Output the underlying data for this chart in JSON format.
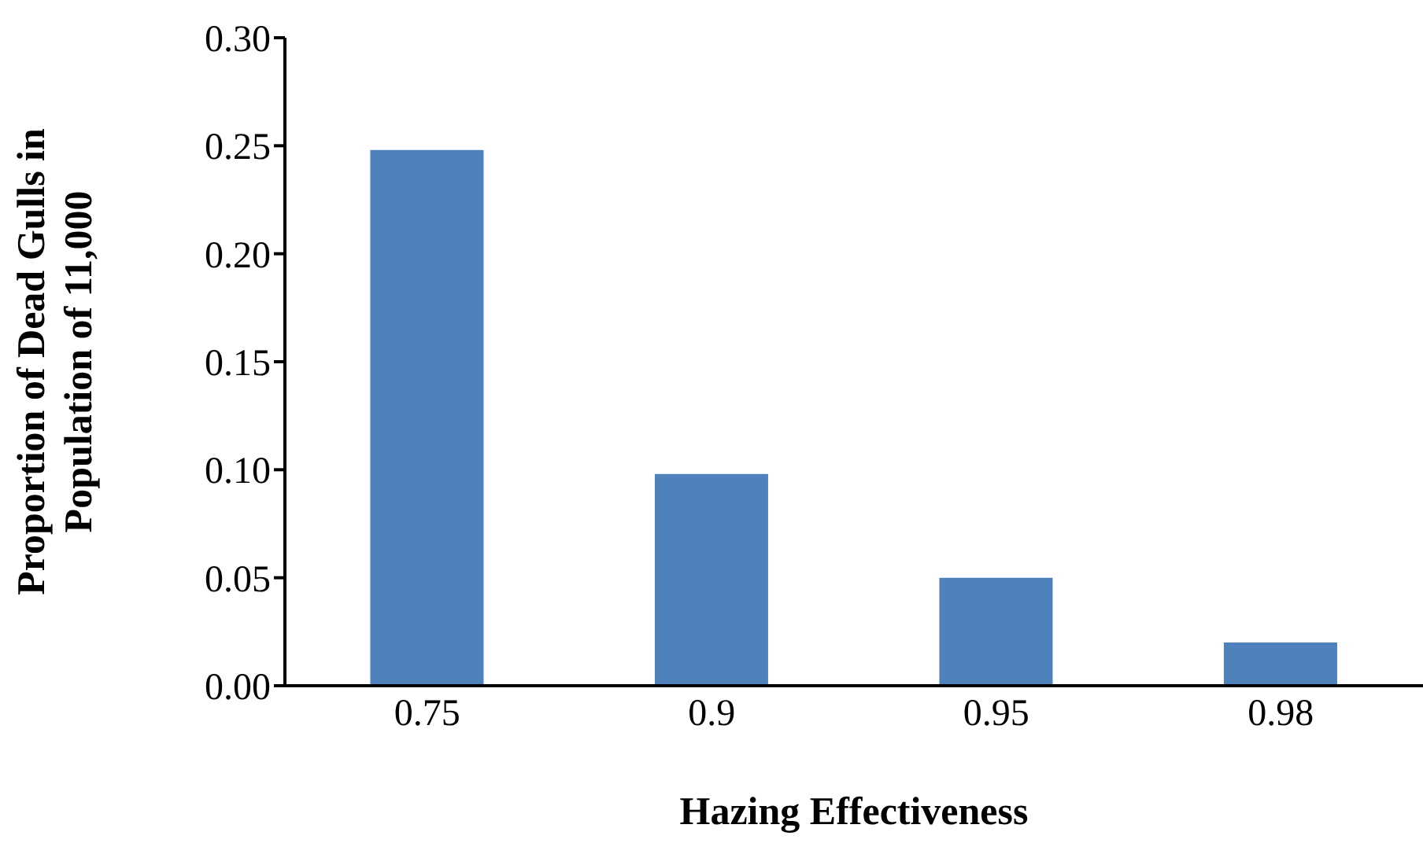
{
  "chart_data": {
    "type": "bar",
    "xlabel": "Hazing Effectiveness",
    "ylabel": "Proportion of Dead Gulls in Population of 11,000",
    "categories": [
      "0.75",
      "0.9",
      "0.95",
      "0.98"
    ],
    "values": [
      0.248,
      0.098,
      0.05,
      0.02
    ],
    "color": "#4f81bd",
    "ylim": [
      0,
      0.3
    ],
    "yticks": [
      {
        "value": 0,
        "label": "0.00"
      },
      {
        "value": 0.05,
        "label": "0.05"
      },
      {
        "value": 0.1,
        "label": "0.10"
      },
      {
        "value": 0.15,
        "label": "0.15"
      },
      {
        "value": 0.2,
        "label": "0.20"
      },
      {
        "value": 0.25,
        "label": "0.25"
      },
      {
        "value": 0.3,
        "label": "0.30"
      }
    ],
    "grid": false
  }
}
